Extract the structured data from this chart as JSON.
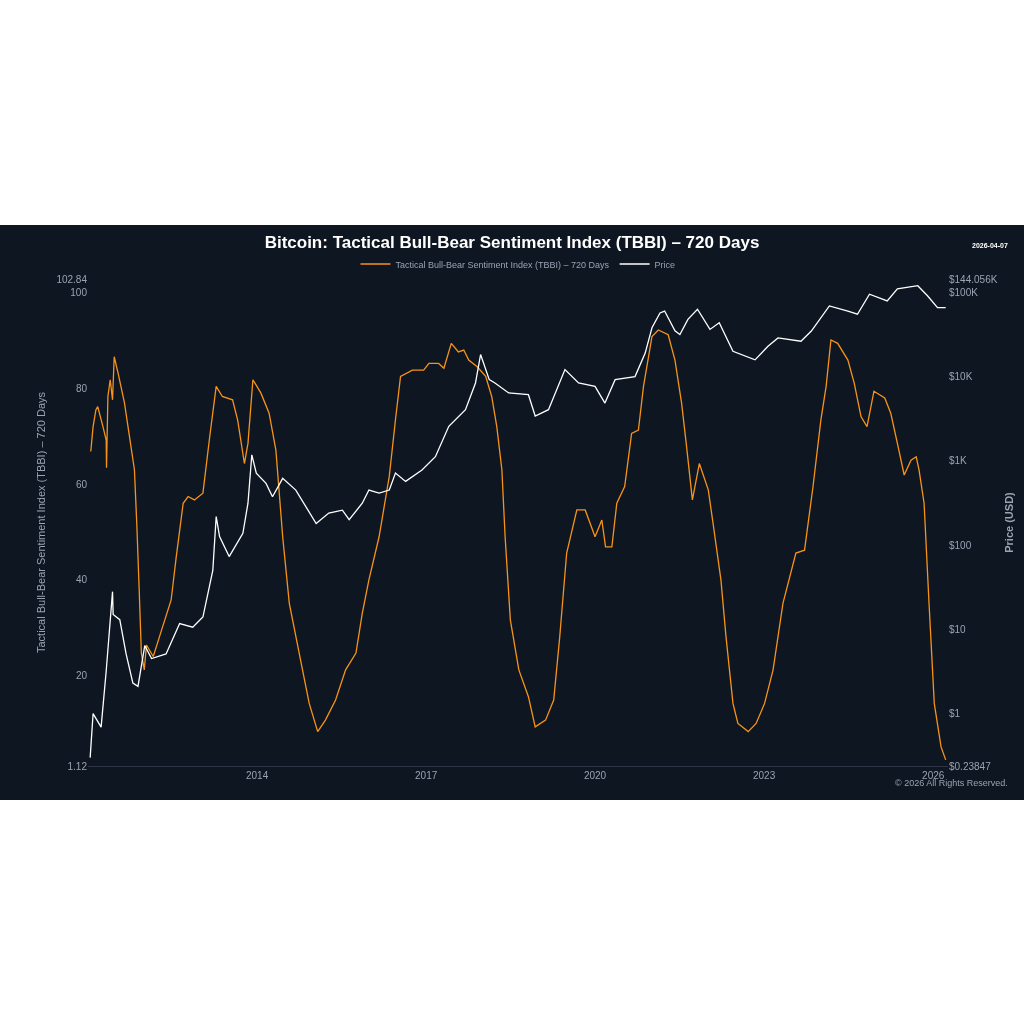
{
  "chart_data": {
    "type": "line",
    "title": "Bitcoin: Tactical Bull-Bear Sentiment Index (TBBI) – 720 Days",
    "ylabel": "Tactical Bull-Bear Sentiment Index (TBBI) – 720 Days",
    "y2label": "Price (USD)",
    "annotations": [
      "2026-04-07",
      "© 2026 All Rights Reserved."
    ],
    "legend": "top",
    "log": "y2",
    "xlim": [
      "2011-01-01",
      "2026-04-07"
    ],
    "xticks": [
      "2014",
      "2017",
      "2020",
      "2023",
      "2026"
    ],
    "ylim": [
      1.12,
      102.84
    ],
    "yticks": [
      1.12,
      20,
      40,
      60,
      80,
      100,
      102.84
    ],
    "y2lim": [
      0.23847,
      144056
    ],
    "y2ticks": [
      {
        "value": 0.23847,
        "label": "$0.23847"
      },
      {
        "value": 1,
        "label": "$1"
      },
      {
        "value": 10,
        "label": "$10"
      },
      {
        "value": 100,
        "label": "$100"
      },
      {
        "value": 1000,
        "label": "$1K"
      },
      {
        "value": 10000,
        "label": "$10K"
      },
      {
        "value": 100000,
        "label": "$100K"
      },
      {
        "value": 144056,
        "label": "$144.056K"
      }
    ],
    "series": [
      {
        "name": "Tactical Bull-Bear Sentiment Index (TBBI) – 720 Days",
        "color": "#f7931a",
        "x": [
          "2011-01-19",
          "2011-02-03",
          "2011-02-21",
          "2011-03-05",
          "2011-04-08",
          "2011-04-29",
          "2011-05-01",
          "2011-05-10",
          "2011-05-25",
          "2011-06-09",
          "2011-06-20",
          "2011-07-15",
          "2011-08-25",
          "2011-09-27",
          "2011-10-29",
          "2011-11-14",
          "2011-11-28",
          "2011-12-13",
          "2012-01-01",
          "2012-01-15",
          "2012-02-28",
          "2012-04-08",
          "2012-06-23",
          "2012-07-26",
          "2012-09-09",
          "2012-10-11",
          "2012-11-21",
          "2013-01-15",
          "2013-02-28",
          "2013-04-11",
          "2013-05-21",
          "2013-07-26",
          "2013-08-28",
          "2013-10-11",
          "2013-11-03",
          "2013-12-05",
          "2014-01-26",
          "2014-03-20",
          "2014-05-03",
          "2014-06-16",
          "2014-07-29",
          "2014-10-01",
          "2014-12-05",
          "2015-01-29",
          "2015-03-20",
          "2015-05-25",
          "2015-07-29",
          "2015-10-04",
          "2015-11-14",
          "2015-12-27",
          "2016-03-02",
          "2016-05-07",
          "2016-06-16",
          "2016-07-19",
          "2016-10-04",
          "2016-12-16",
          "2017-01-19",
          "2017-03-23",
          "2017-04-26",
          "2017-06-13",
          "2017-07-29",
          "2017-09-02",
          "2017-10-04",
          "2017-11-28",
          "2018-01-22",
          "2018-03-02",
          "2018-04-04",
          "2018-05-07",
          "2018-05-28",
          "2018-07-01",
          "2018-08-25",
          "2018-10-26",
          "2018-12-09",
          "2019-02-14",
          "2019-04-08",
          "2019-05-17",
          "2019-07-01",
          "2019-09-05",
          "2019-10-29",
          "2020-01-01",
          "2020-02-14",
          "2020-03-09",
          "2020-04-19",
          "2020-05-21",
          "2020-07-11",
          "2020-08-25",
          "2020-10-08",
          "2020-11-10",
          "2021-01-04",
          "2021-02-14",
          "2021-04-19",
          "2021-06-02",
          "2021-07-15",
          "2021-08-14",
          "2021-09-23",
          "2021-11-07",
          "2022-01-04",
          "2022-02-07",
          "2022-03-27",
          "2022-04-29",
          "2022-06-13",
          "2022-07-15",
          "2022-09-20",
          "2022-11-10",
          "2023-01-04",
          "2023-02-28",
          "2023-05-03",
          "2023-07-26",
          "2023-09-20",
          "2023-11-14",
          "2024-01-04",
          "2024-02-07",
          "2024-03-09",
          "2024-04-22",
          "2024-06-27",
          "2024-08-07",
          "2024-09-20",
          "2024-10-29",
          "2024-12-13",
          "2025-02-21",
          "2025-04-01",
          "2025-05-14",
          "2025-06-27",
          "2025-08-10",
          "2025-09-13",
          "2025-10-01",
          "2025-11-03",
          "2025-12-05",
          "2026-01-08",
          "2026-02-21",
          "2026-03-23"
        ],
        "values": [
          66.8,
          72.0,
          75.5,
          76.2,
          72.0,
          69.2,
          63.4,
          78.3,
          81.8,
          77.6,
          86.6,
          83.2,
          77.0,
          69.9,
          63.0,
          51.1,
          38.6,
          24.7,
          21.2,
          26.4,
          24.0,
          28.1,
          35.8,
          44.8,
          56.0,
          57.4,
          56.7,
          58.1,
          69.9,
          80.4,
          78.3,
          77.6,
          73.4,
          64.3,
          68.5,
          81.8,
          79.0,
          74.8,
          67.1,
          49.0,
          35.1,
          24.7,
          14.2,
          8.3,
          10.7,
          14.9,
          21.2,
          24.7,
          33.0,
          40.0,
          49.0,
          61.6,
          73.4,
          82.5,
          83.8,
          83.8,
          85.2,
          85.2,
          84.2,
          89.4,
          87.6,
          88.0,
          85.9,
          84.5,
          82.5,
          78.3,
          72.0,
          63.0,
          49.0,
          31.6,
          21.2,
          15.6,
          9.3,
          10.7,
          14.9,
          28.1,
          45.6,
          54.6,
          54.6,
          49.0,
          52.5,
          46.9,
          46.9,
          56.0,
          59.5,
          70.6,
          71.3,
          80.4,
          90.8,
          92.2,
          91.2,
          85.9,
          76.9,
          68.5,
          56.7,
          64.3,
          58.8,
          51.1,
          40.0,
          28.1,
          14.2,
          10.0,
          8.3,
          10.0,
          14.2,
          21.2,
          35.1,
          45.6,
          46.2,
          59.5,
          73.4,
          80.4,
          90.1,
          89.4,
          85.9,
          81.1,
          74.1,
          72.0,
          79.4,
          78.0,
          74.8,
          68.5,
          61.9,
          65.0,
          65.7,
          63.0,
          56.0,
          35.1,
          14.2,
          5.1,
          2.4
        ]
      },
      {
        "name": "Price",
        "color": "#ffffff",
        "axis": "y2",
        "x": [
          "2011-01-15",
          "2011-02-03",
          "2011-03-27",
          "2011-04-29",
          "2011-06-09",
          "2011-06-13",
          "2011-07-26",
          "2011-09-05",
          "2011-10-19",
          "2011-11-21",
          "2012-01-04",
          "2012-02-17",
          "2012-05-21",
          "2012-08-17",
          "2012-11-10",
          "2013-01-15",
          "2013-03-20",
          "2013-04-11",
          "2013-05-03",
          "2013-07-04",
          "2013-10-01",
          "2013-11-03",
          "2013-11-28",
          "2013-12-27",
          "2014-02-28",
          "2014-04-11",
          "2014-06-16",
          "2014-09-09",
          "2015-01-19",
          "2015-04-11",
          "2015-07-08",
          "2015-08-21",
          "2015-11-14",
          "2015-12-27",
          "2016-03-02",
          "2016-05-07",
          "2016-06-16",
          "2016-08-21",
          "2016-12-05",
          "2017-03-02",
          "2017-05-28",
          "2017-09-13",
          "2017-11-17",
          "2017-12-20",
          "2018-02-14",
          "2018-03-23",
          "2018-06-20",
          "2018-10-26",
          "2018-12-09",
          "2019-03-05",
          "2019-06-20",
          "2019-09-16",
          "2020-01-01",
          "2020-03-05",
          "2020-05-10",
          "2020-09-16",
          "2020-11-21",
          "2021-01-04",
          "2021-02-25",
          "2021-03-27",
          "2021-06-02",
          "2021-07-04",
          "2021-08-25",
          "2021-10-26",
          "2022-01-15",
          "2022-03-16",
          "2022-06-13",
          "2022-11-03",
          "2023-01-26",
          "2023-04-01",
          "2023-08-28",
          "2023-11-03",
          "2024-02-28",
          "2024-06-27",
          "2024-08-28",
          "2024-11-14",
          "2025-03-09",
          "2025-05-14",
          "2025-09-23",
          "2025-11-25",
          "2026-01-29",
          "2026-03-23"
        ],
        "values": [
          0.3,
          1.0,
          0.69,
          3.2,
          28,
          15,
          13,
          5.1,
          2.3,
          2.1,
          6.4,
          4.5,
          5.1,
          11.7,
          10.6,
          14,
          50,
          218,
          126,
          73,
          138,
          314,
          1180,
          715,
          540,
          375,
          620,
          450,
          180,
          240,
          260,
          200,
          314,
          450,
          415,
          450,
          715,
          570,
          780,
          1120,
          2570,
          4050,
          8400,
          18300,
          9200,
          8400,
          6400,
          6100,
          3400,
          4050,
          12100,
          8400,
          7650,
          4850,
          9200,
          10000,
          19000,
          38000,
          57000,
          60000,
          35000,
          31600,
          47800,
          63000,
          36300,
          43600,
          20000,
          15800,
          22900,
          28800,
          26300,
          34700,
          69000,
          60000,
          55000,
          95000,
          79000,
          110000,
          120000,
          91000,
          66000,
          66000
        ]
      }
    ]
  }
}
